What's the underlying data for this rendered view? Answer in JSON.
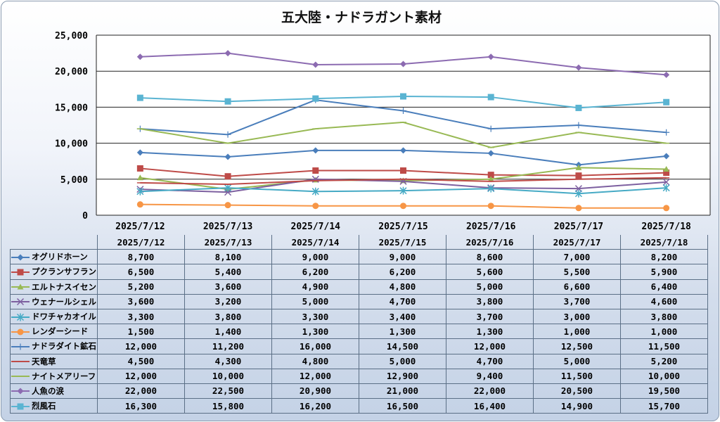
{
  "chart_data": {
    "type": "line",
    "title": "五大陸・ナドラガント素材",
    "categories": [
      "2025/7/12",
      "2025/7/13",
      "2025/7/14",
      "2025/7/15",
      "2025/7/16",
      "2025/7/17",
      "2025/7/18"
    ],
    "ylim": [
      0,
      25000
    ],
    "yticks": [
      "0",
      "5,000",
      "10,000",
      "15,000",
      "20,000",
      "25,000"
    ],
    "grid": true,
    "legend": "data-table",
    "series": [
      {
        "name": "オグリドホーン",
        "color": "#4a7ebb",
        "marker": "diamond",
        "values": [
          8700,
          8100,
          9000,
          9000,
          8600,
          7000,
          8200
        ],
        "labels": [
          "8,700",
          "8,100",
          "9,000",
          "9,000",
          "8,600",
          "7,000",
          "8,200"
        ]
      },
      {
        "name": "プクランサフラン",
        "color": "#be4b48",
        "marker": "square",
        "values": [
          6500,
          5400,
          6200,
          6200,
          5600,
          5500,
          5900
        ],
        "labels": [
          "6,500",
          "5,400",
          "6,200",
          "6,200",
          "5,600",
          "5,500",
          "5,900"
        ]
      },
      {
        "name": "エルトナスイセン",
        "color": "#98b954",
        "marker": "triangle",
        "values": [
          5200,
          3600,
          4900,
          4800,
          5000,
          6600,
          6400
        ],
        "labels": [
          "5,200",
          "3,600",
          "4,900",
          "4,800",
          "5,000",
          "6,600",
          "6,400"
        ]
      },
      {
        "name": "ウェナールシェル",
        "color": "#7d60a0",
        "marker": "x",
        "values": [
          3600,
          3200,
          5000,
          4700,
          3800,
          3700,
          4600
        ],
        "labels": [
          "3,600",
          "3,200",
          "5,000",
          "4,700",
          "3,800",
          "3,700",
          "4,600"
        ]
      },
      {
        "name": "ドワチャカオイル",
        "color": "#46aac5",
        "marker": "star",
        "values": [
          3300,
          3800,
          3300,
          3400,
          3700,
          3000,
          3800
        ],
        "labels": [
          "3,300",
          "3,800",
          "3,300",
          "3,400",
          "3,700",
          "3,000",
          "3,800"
        ]
      },
      {
        "name": "レンダーシード",
        "color": "#f79646",
        "marker": "circle",
        "values": [
          1500,
          1400,
          1300,
          1300,
          1300,
          1000,
          1000
        ],
        "labels": [
          "1,500",
          "1,400",
          "1,300",
          "1,300",
          "1,300",
          "1,000",
          "1,000"
        ]
      },
      {
        "name": "ナドラダイト鉱石",
        "color": "#4a7ebb",
        "marker": "plus",
        "values": [
          12000,
          11200,
          16000,
          14500,
          12000,
          12500,
          11500
        ],
        "labels": [
          "12,000",
          "11,200",
          "16,000",
          "14,500",
          "12,000",
          "12,500",
          "11,500"
        ]
      },
      {
        "name": "天竜草",
        "color": "#be4b48",
        "marker": "dash",
        "values": [
          4500,
          4300,
          4800,
          5000,
          4700,
          5000,
          5200
        ],
        "labels": [
          "4,500",
          "4,300",
          "4,800",
          "5,000",
          "4,700",
          "5,000",
          "5,200"
        ]
      },
      {
        "name": "ナイトメアリーフ",
        "color": "#98b954",
        "marker": "dash",
        "values": [
          12000,
          10000,
          12000,
          12900,
          9400,
          11500,
          10000
        ],
        "labels": [
          "12,000",
          "10,000",
          "12,000",
          "12,900",
          "9,400",
          "11,500",
          "10,000"
        ]
      },
      {
        "name": "人魚の涙",
        "color": "#8c6bb1",
        "marker": "diamond",
        "values": [
          22000,
          22500,
          20900,
          21000,
          22000,
          20500,
          19500
        ],
        "labels": [
          "22,000",
          "22,500",
          "20,900",
          "21,000",
          "22,000",
          "20,500",
          "19,500"
        ]
      },
      {
        "name": "烈風石",
        "color": "#5ab4d2",
        "marker": "square",
        "values": [
          16300,
          15800,
          16200,
          16500,
          16400,
          14900,
          15700
        ],
        "labels": [
          "16,300",
          "15,800",
          "16,200",
          "16,500",
          "16,400",
          "14,900",
          "15,700"
        ]
      }
    ]
  }
}
